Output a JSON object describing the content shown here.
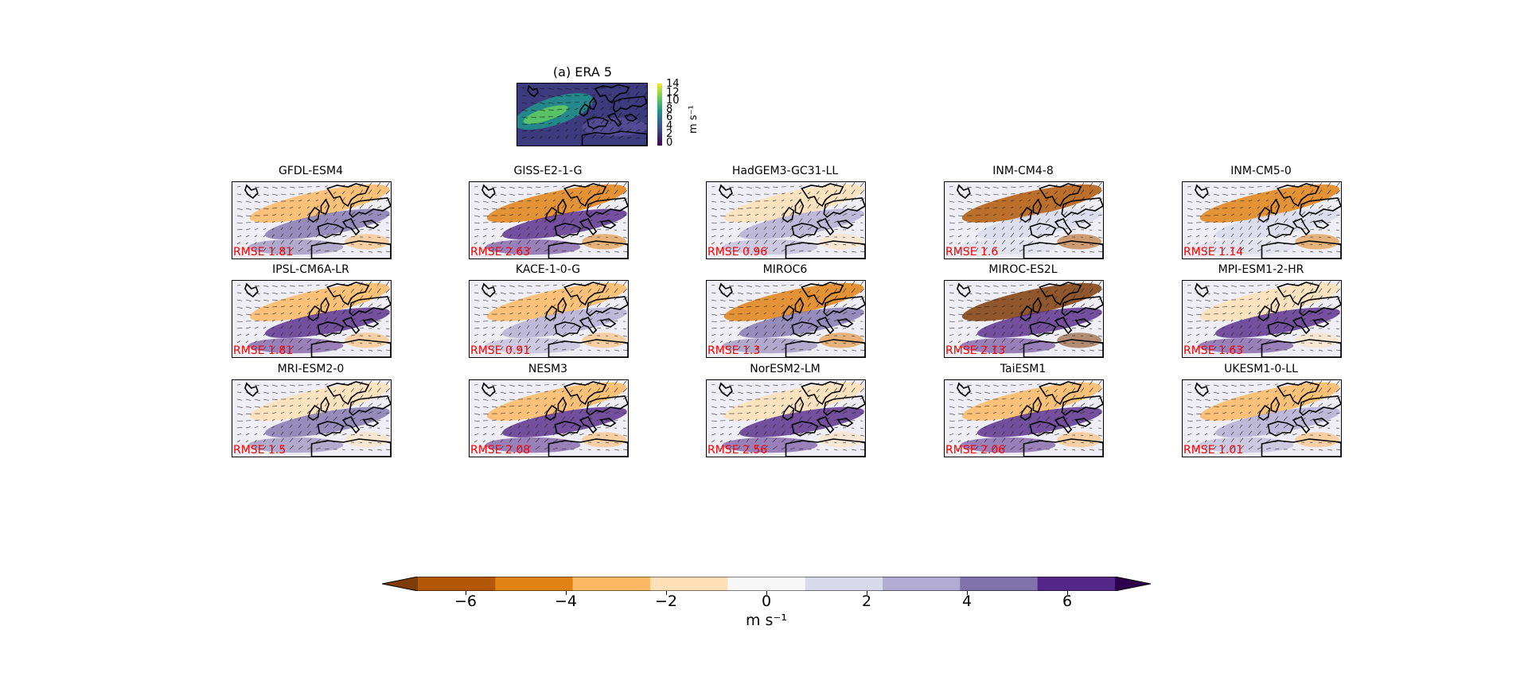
{
  "figure": {
    "reference_panel": {
      "title": "(a) ERA 5",
      "colorbar_ticks": [
        "14",
        "12",
        "10",
        "8",
        "6",
        "4",
        "2",
        "0"
      ],
      "colorbar_unit": "m s⁻¹",
      "colormap": [
        "#440154",
        "#3b528b",
        "#21918c",
        "#5ec962",
        "#a6d940",
        "#fde725"
      ]
    },
    "main_colorbar": {
      "ticks": [
        "−6",
        "−4",
        "−2",
        "0",
        "2",
        "4",
        "6"
      ],
      "unit": "m s⁻¹",
      "colors": [
        "#7f3b08",
        "#b35806",
        "#e08214",
        "#fdb863",
        "#fee0b6",
        "#f7f7f7",
        "#d8daeb",
        "#b2abd2",
        "#8073ac",
        "#542788",
        "#2d004b"
      ]
    }
  },
  "chart_data": [
    {
      "type": "heatmap",
      "title": "(a) ERA 5",
      "description_of_values": "wind speed field with wind vectors",
      "colorbar": {
        "ticks": [
          0,
          2,
          4,
          6,
          8,
          10,
          12,
          14
        ],
        "label": "m s⁻¹"
      }
    },
    {
      "type": "heatmap",
      "colorbar": {
        "ticks": [
          -6,
          -4,
          -2,
          0,
          2,
          4,
          6
        ],
        "label": "m s⁻¹",
        "extend": "both"
      },
      "panels": [
        {
          "title": "GFDL-ESM4",
          "rmse_label": "RMSE 1.81",
          "rmse": 1.81
        },
        {
          "title": "GISS-E2-1-G",
          "rmse_label": "RMSE 2.63",
          "rmse": 2.63
        },
        {
          "title": "HadGEM3-GC31-LL",
          "rmse_label": "RMSE 0.96",
          "rmse": 0.96
        },
        {
          "title": "INM-CM4-8",
          "rmse_label": "RMSE 1.6",
          "rmse": 1.6
        },
        {
          "title": "INM-CM5-0",
          "rmse_label": "RMSE 1.14",
          "rmse": 1.14
        },
        {
          "title": "IPSL-CM6A-LR",
          "rmse_label": "RMSE 1.81",
          "rmse": 1.81
        },
        {
          "title": "KACE-1-0-G",
          "rmse_label": "RMSE 0.91",
          "rmse": 0.91
        },
        {
          "title": "MIROC6",
          "rmse_label": "RMSE 1.3",
          "rmse": 1.3
        },
        {
          "title": "MIROC-ES2L",
          "rmse_label": "RMSE 2.13",
          "rmse": 2.13
        },
        {
          "title": "MPI-ESM1-2-HR",
          "rmse_label": "RMSE 1.63",
          "rmse": 1.63
        },
        {
          "title": "MRI-ESM2-0",
          "rmse_label": "RMSE 1.5",
          "rmse": 1.5
        },
        {
          "title": "NESM3",
          "rmse_label": "RMSE 2.08",
          "rmse": 2.08
        },
        {
          "title": "NorESM2-LM",
          "rmse_label": "RMSE 2.56",
          "rmse": 2.56
        },
        {
          "title": "TaiESM1",
          "rmse_label": "RMSE 2.06",
          "rmse": 2.06
        },
        {
          "title": "UKESM1-0-LL",
          "rmse_label": "RMSE 1.01",
          "rmse": 1.01
        }
      ]
    }
  ]
}
